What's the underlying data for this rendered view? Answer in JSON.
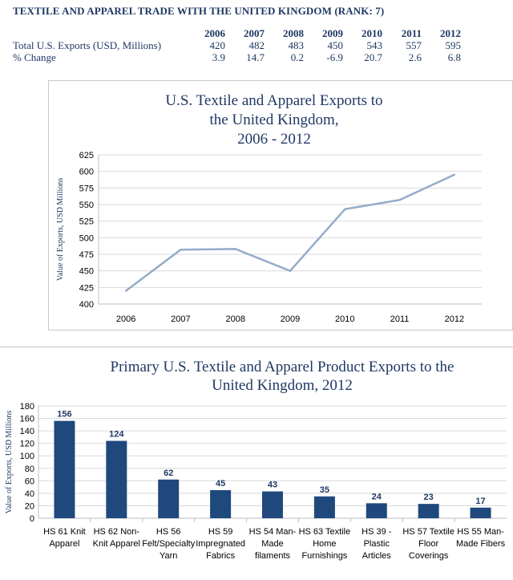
{
  "header": {
    "title": "TEXTILE AND APPAREL TRADE WITH THE UNITED KINGDOM (RANK: 7)"
  },
  "trade_table": {
    "years": [
      "2006",
      "2007",
      "2008",
      "2009",
      "2010",
      "2011",
      "2012"
    ],
    "rows": [
      {
        "label": "Total U.S. Exports (USD, Millions)",
        "values": [
          "420",
          "482",
          "483",
          "450",
          "543",
          "557",
          "595"
        ]
      },
      {
        "label": "% Change",
        "values": [
          "3.9",
          "14.7",
          "0.2",
          "-6.9",
          "20.7",
          "2.6",
          "6.8"
        ]
      }
    ]
  },
  "chart_data": [
    {
      "type": "line",
      "title_lines": [
        "U.S. Textile and Apparel Exports to",
        "the United Kingdom,",
        "2006 - 2012"
      ],
      "xlabel": "",
      "ylabel": "Value of Exports, USD Millions",
      "x": [
        "2006",
        "2007",
        "2008",
        "2009",
        "2010",
        "2011",
        "2012"
      ],
      "values": [
        420,
        482,
        483,
        450,
        543,
        557,
        595
      ],
      "ylim": [
        400,
        625
      ],
      "yticks": [
        "400",
        "425",
        "450",
        "475",
        "500",
        "525",
        "550",
        "575",
        "600",
        "625"
      ],
      "grid": true,
      "color": "#95abc9"
    },
    {
      "type": "bar",
      "title_lines": [
        "Primary U.S. Textile and Apparel Product Exports to the",
        "United Kingdom, 2012"
      ],
      "xlabel": "",
      "ylabel": "Value of Exports, USD Millions",
      "categories": [
        [
          "HS 61 Knit",
          "Apparel"
        ],
        [
          "HS 62 Non-",
          "Knit Apparel"
        ],
        [
          "HS 56",
          "Felt/Specialty",
          "Yarn"
        ],
        [
          "HS 59",
          "Impregnated",
          "Fabrics"
        ],
        [
          "HS 54 Man-",
          "Made",
          "filaments"
        ],
        [
          "HS 63 Textile",
          "Home",
          "Furnishings"
        ],
        [
          "HS 39 -",
          "Plastic",
          "Articles"
        ],
        [
          "HS 57 Textile",
          "Floor",
          "Coverings"
        ],
        [
          "HS 55 Man-",
          "Made Fibers"
        ]
      ],
      "values": [
        156,
        124,
        62,
        45,
        43,
        35,
        24,
        23,
        17
      ],
      "data_labels": [
        "156",
        "124",
        "62",
        "45",
        "43",
        "35",
        "24",
        "23",
        "17"
      ],
      "ylim": [
        0,
        180
      ],
      "yticks": [
        "0",
        "20",
        "40",
        "60",
        "80",
        "100",
        "120",
        "140",
        "160",
        "180"
      ],
      "grid": true,
      "color": "#1f497d"
    }
  ]
}
